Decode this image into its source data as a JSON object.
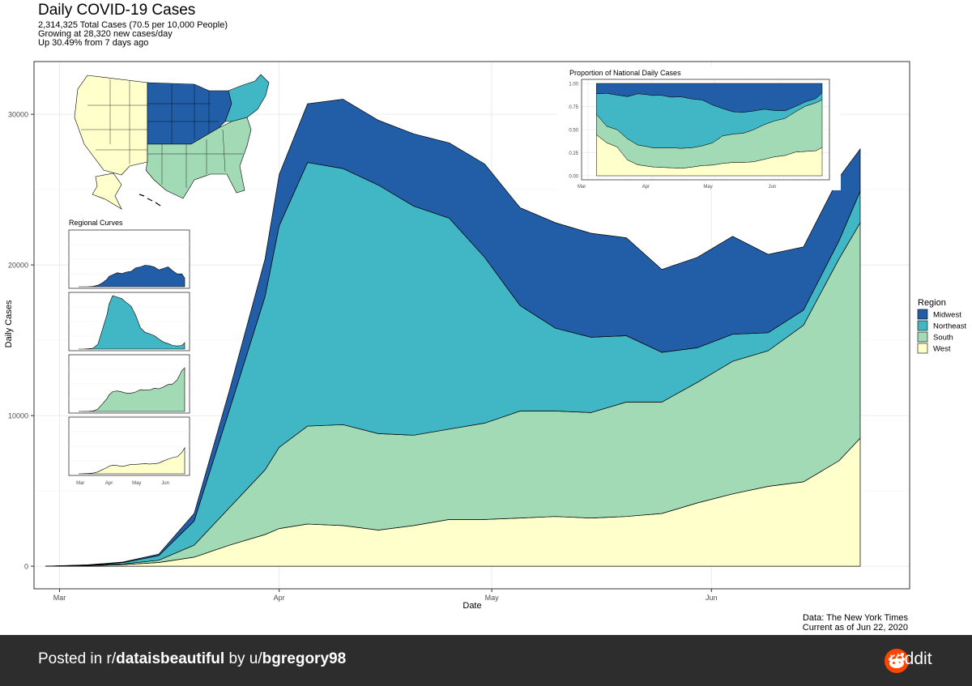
{
  "header": {
    "title": "Daily COVID-19 Cases",
    "subtitle_1": "2,314,325 Total Cases (70.5 per 10,000 People)",
    "subtitle_2": "Growing at 28,320 new cases/day",
    "subtitle_3": "Up 30.49% from 7 days ago"
  },
  "source": {
    "line_1": "Data: The New York Times",
    "line_2": "Current as of Jun 22, 2020"
  },
  "footer": {
    "prefix": "Posted in r/",
    "subreddit": "dataisbeautiful",
    "middle": " by u/",
    "user": "bgregory98",
    "brand": "reddit"
  },
  "colors": {
    "Midwest": "#225ea8",
    "Northeast": "#41b6c4",
    "South": "#a1dab4",
    "West": "#ffffcc"
  },
  "chart_data": [
    {
      "type": "area",
      "stacked": true,
      "title": "Daily COVID-19 Cases",
      "xlabel": "Date",
      "ylabel": "Daily Cases",
      "x_ticks": [
        "Mar",
        "Apr",
        "May",
        "Jun"
      ],
      "y_ticks": [
        0,
        10000,
        20000,
        30000
      ],
      "ylim": [
        -1500,
        33500
      ],
      "grid": true,
      "legend_title": "Region",
      "legend_position": "right",
      "x": [
        "Feb 28",
        "Mar 05",
        "Mar 10",
        "Mar 15",
        "Mar 20",
        "Mar 25",
        "Mar 30",
        "Apr 01",
        "Apr 05",
        "Apr 10",
        "Apr 15",
        "Apr 20",
        "Apr 25",
        "Apr 30",
        "May 05",
        "May 10",
        "May 15",
        "May 20",
        "May 25",
        "May 30",
        "Jun 04",
        "Jun 09",
        "Jun 14",
        "Jun 19",
        "Jun 22"
      ],
      "series": [
        {
          "name": "West",
          "values": [
            0,
            40,
            100,
            250,
            600,
            1400,
            2100,
            2500,
            2800,
            2700,
            2400,
            2700,
            3100,
            3100,
            3200,
            3300,
            3200,
            3300,
            3500,
            4200,
            4800,
            5300,
            5600,
            7000,
            8500
          ]
        },
        {
          "name": "South",
          "values": [
            0,
            20,
            50,
            150,
            800,
            2500,
            4300,
            5400,
            6500,
            6700,
            6400,
            6000,
            6000,
            6400,
            7100,
            7000,
            7000,
            7600,
            7400,
            8000,
            8800,
            9000,
            10400,
            13400,
            14300
          ]
        },
        {
          "name": "Northeast",
          "values": [
            0,
            20,
            100,
            300,
            1600,
            6500,
            11500,
            14700,
            17500,
            17000,
            16500,
            15200,
            14000,
            11000,
            7000,
            5500,
            5000,
            4400,
            3300,
            2300,
            1800,
            1200,
            1000,
            1200,
            2100
          ]
        },
        {
          "name": "Midwest",
          "values": [
            0,
            10,
            30,
            100,
            500,
            1300,
            2500,
            3400,
            3900,
            4600,
            4300,
            4800,
            5000,
            6200,
            6500,
            7000,
            6900,
            6500,
            5500,
            6000,
            6500,
            5200,
            4200,
            4200,
            2800
          ]
        }
      ]
    },
    {
      "type": "area",
      "stacked": true,
      "normalized": true,
      "title": "Proportion of National Daily Cases",
      "x_ticks": [
        "Mar",
        "Apr",
        "May",
        "Jun"
      ],
      "y_ticks": [
        "0.00",
        "0.25",
        "0.50",
        "0.75",
        "1.00"
      ],
      "ylim": [
        0,
        1
      ],
      "note": "share of each region in the stacked national daily cases"
    },
    {
      "type": "area",
      "title": "Regional Curves",
      "panels": [
        "Midwest",
        "Northeast",
        "South",
        "West"
      ],
      "x_ticks": [
        "Mar",
        "Apr",
        "May",
        "Jun"
      ],
      "note": "one small multiple per region, same x axis"
    }
  ],
  "map": {
    "title": "US map colored by region",
    "regions": [
      "West",
      "Midwest",
      "South",
      "Northeast"
    ]
  }
}
